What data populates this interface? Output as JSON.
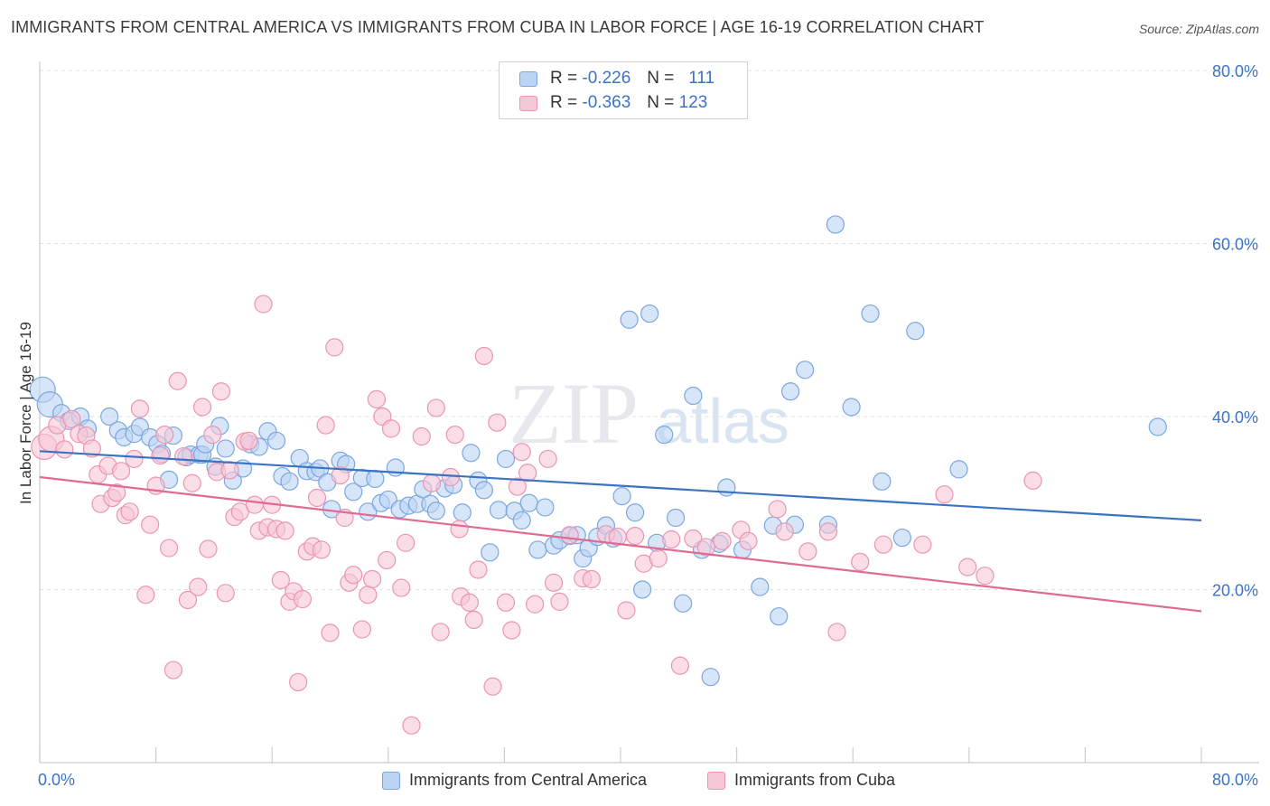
{
  "title": "IMMIGRANTS FROM CENTRAL AMERICA VS IMMIGRANTS FROM CUBA IN LABOR FORCE | AGE 16-19 CORRELATION CHART",
  "source": "Source: ZipAtlas.com",
  "watermark": {
    "zip": "ZIP",
    "atlas": "atlas"
  },
  "legend_top": {
    "rows": [
      {
        "r_label": "R =",
        "r_value": "-0.226",
        "n_label": "N =",
        "n_value": "111",
        "color": "#7aa7e0",
        "fill": "#bcd4f4"
      },
      {
        "r_label": "R =",
        "r_value": "-0.363",
        "n_label": "N =",
        "n_value": "123",
        "color": "#eb95b2",
        "fill": "#f7c6d7"
      }
    ]
  },
  "legend_bottom": {
    "items": [
      {
        "label": "Immigrants from Central America",
        "color": "#7aa7e0",
        "fill": "#bcd4f4"
      },
      {
        "label": "Immigrants from Cuba",
        "color": "#eb95b2",
        "fill": "#f7c6d7"
      }
    ]
  },
  "chart_data": {
    "type": "scatter",
    "title": "IMMIGRANTS FROM CENTRAL AMERICA VS IMMIGRANTS FROM CUBA IN LABOR FORCE | AGE 16-19 CORRELATION CHART",
    "xlabel": "",
    "ylabel": "In Labor Force | Age 16-19",
    "xlim": [
      0,
      80
    ],
    "ylim": [
      0,
      80
    ],
    "x_tick_labels": [
      "0.0%",
      "80.0%"
    ],
    "y_tick_labels": [
      "20.0%",
      "40.0%",
      "60.0%",
      "80.0%"
    ],
    "y_ticks": [
      20,
      40,
      60,
      80
    ],
    "grid": true,
    "legend_position": "top-center",
    "series": [
      {
        "name": "Immigrants from Central America",
        "color": "#3b73c4",
        "fill": "#bcd4f4",
        "stroke": "#7aa7e0",
        "trend": {
          "x": [
            0,
            80
          ],
          "y": [
            36.0,
            28.0
          ]
        },
        "points": [
          [
            0.2,
            43.1
          ],
          [
            0.7,
            41.4
          ],
          [
            1.5,
            40.4
          ],
          [
            2.0,
            39.5
          ],
          [
            2.8,
            40.0
          ],
          [
            3.3,
            38.6
          ],
          [
            4.8,
            40.0
          ],
          [
            5.4,
            38.4
          ],
          [
            5.8,
            37.6
          ],
          [
            6.5,
            38.0
          ],
          [
            6.9,
            38.8
          ],
          [
            7.6,
            37.6
          ],
          [
            8.1,
            36.8
          ],
          [
            8.4,
            35.7
          ],
          [
            8.9,
            32.7
          ],
          [
            9.2,
            37.8
          ],
          [
            10.1,
            35.3
          ],
          [
            10.4,
            35.6
          ],
          [
            11.0,
            35.6
          ],
          [
            11.2,
            35.6
          ],
          [
            11.4,
            36.8
          ],
          [
            12.1,
            34.2
          ],
          [
            12.4,
            38.9
          ],
          [
            12.8,
            36.3
          ],
          [
            13.3,
            32.6
          ],
          [
            14.0,
            34.0
          ],
          [
            14.5,
            36.8
          ],
          [
            15.1,
            36.5
          ],
          [
            15.7,
            38.3
          ],
          [
            16.3,
            37.2
          ],
          [
            16.7,
            33.1
          ],
          [
            17.2,
            32.5
          ],
          [
            17.9,
            35.2
          ],
          [
            18.4,
            33.7
          ],
          [
            19.0,
            33.6
          ],
          [
            19.3,
            34.0
          ],
          [
            19.8,
            32.4
          ],
          [
            20.1,
            29.3
          ],
          [
            20.7,
            34.9
          ],
          [
            21.1,
            34.5
          ],
          [
            21.6,
            31.3
          ],
          [
            22.2,
            32.9
          ],
          [
            22.6,
            29.0
          ],
          [
            23.1,
            32.8
          ],
          [
            23.5,
            30.0
          ],
          [
            24.0,
            30.4
          ],
          [
            24.5,
            34.1
          ],
          [
            24.8,
            29.3
          ],
          [
            25.4,
            29.7
          ],
          [
            26.0,
            29.9
          ],
          [
            26.4,
            31.6
          ],
          [
            26.9,
            29.9
          ],
          [
            27.3,
            29.1
          ],
          [
            27.9,
            31.7
          ],
          [
            28.5,
            32.1
          ],
          [
            29.1,
            28.9
          ],
          [
            29.7,
            35.8
          ],
          [
            30.2,
            32.6
          ],
          [
            30.6,
            31.5
          ],
          [
            31.0,
            24.3
          ],
          [
            31.6,
            29.2
          ],
          [
            32.1,
            35.1
          ],
          [
            32.7,
            29.1
          ],
          [
            33.2,
            28.0
          ],
          [
            33.7,
            30.0
          ],
          [
            34.3,
            24.6
          ],
          [
            34.8,
            29.5
          ],
          [
            35.4,
            25.1
          ],
          [
            35.8,
            25.7
          ],
          [
            36.5,
            26.2
          ],
          [
            37.0,
            26.3
          ],
          [
            37.4,
            23.6
          ],
          [
            37.8,
            24.8
          ],
          [
            38.4,
            26.1
          ],
          [
            39.0,
            27.4
          ],
          [
            39.5,
            25.9
          ],
          [
            40.1,
            30.8
          ],
          [
            40.6,
            51.2
          ],
          [
            41.0,
            28.9
          ],
          [
            41.5,
            20.0
          ],
          [
            42.0,
            51.9
          ],
          [
            42.5,
            25.4
          ],
          [
            43.0,
            37.9
          ],
          [
            43.8,
            28.3
          ],
          [
            44.3,
            18.4
          ],
          [
            45.0,
            42.4
          ],
          [
            45.6,
            24.6
          ],
          [
            46.2,
            9.9
          ],
          [
            46.8,
            25.3
          ],
          [
            47.3,
            31.8
          ],
          [
            48.4,
            24.6
          ],
          [
            49.6,
            20.3
          ],
          [
            50.5,
            27.4
          ],
          [
            50.9,
            16.9
          ],
          [
            51.7,
            42.9
          ],
          [
            52.0,
            27.5
          ],
          [
            52.7,
            45.4
          ],
          [
            54.3,
            27.5
          ],
          [
            54.8,
            62.2
          ],
          [
            55.9,
            41.1
          ],
          [
            57.2,
            51.9
          ],
          [
            58.0,
            32.5
          ],
          [
            59.4,
            26.0
          ],
          [
            60.3,
            49.9
          ],
          [
            63.3,
            33.9
          ],
          [
            77.0,
            38.8
          ]
        ]
      },
      {
        "name": "Immigrants from Cuba",
        "color": "#e06a94",
        "fill": "#f7c6d7",
        "stroke": "#eb95b2",
        "trend": {
          "x": [
            0,
            80
          ],
          "y": [
            33.0,
            17.5
          ]
        },
        "points": [
          [
            0.3,
            36.5
          ],
          [
            0.8,
            37.4
          ],
          [
            1.2,
            39.0
          ],
          [
            1.7,
            36.2
          ],
          [
            2.2,
            39.7
          ],
          [
            2.7,
            38.0
          ],
          [
            3.2,
            37.8
          ],
          [
            3.6,
            36.3
          ],
          [
            4.0,
            33.3
          ],
          [
            4.2,
            29.9
          ],
          [
            4.7,
            34.3
          ],
          [
            5.0,
            30.6
          ],
          [
            5.3,
            31.2
          ],
          [
            5.6,
            33.7
          ],
          [
            5.9,
            28.6
          ],
          [
            6.2,
            29.0
          ],
          [
            6.5,
            35.1
          ],
          [
            6.9,
            40.9
          ],
          [
            7.3,
            19.4
          ],
          [
            7.6,
            27.5
          ],
          [
            8.0,
            32.0
          ],
          [
            8.3,
            35.5
          ],
          [
            8.6,
            37.9
          ],
          [
            8.9,
            24.8
          ],
          [
            9.2,
            10.7
          ],
          [
            9.5,
            44.1
          ],
          [
            9.9,
            35.4
          ],
          [
            10.2,
            18.8
          ],
          [
            10.5,
            32.3
          ],
          [
            10.9,
            20.3
          ],
          [
            11.2,
            41.1
          ],
          [
            11.6,
            24.7
          ],
          [
            11.9,
            37.9
          ],
          [
            12.2,
            33.6
          ],
          [
            12.5,
            42.9
          ],
          [
            12.8,
            19.6
          ],
          [
            13.1,
            33.8
          ],
          [
            13.4,
            28.4
          ],
          [
            13.8,
            29.0
          ],
          [
            14.1,
            37.1
          ],
          [
            14.4,
            37.2
          ],
          [
            14.8,
            29.8
          ],
          [
            15.1,
            26.8
          ],
          [
            15.4,
            53.0
          ],
          [
            15.7,
            27.2
          ],
          [
            16.0,
            29.8
          ],
          [
            16.3,
            27.0
          ],
          [
            16.6,
            21.1
          ],
          [
            16.9,
            26.8
          ],
          [
            17.2,
            18.6
          ],
          [
            17.5,
            19.8
          ],
          [
            17.8,
            9.3
          ],
          [
            18.1,
            18.9
          ],
          [
            18.4,
            24.4
          ],
          [
            18.8,
            25.0
          ],
          [
            19.1,
            30.6
          ],
          [
            19.4,
            24.6
          ],
          [
            19.7,
            39.0
          ],
          [
            20.0,
            15.0
          ],
          [
            20.3,
            48.0
          ],
          [
            20.7,
            33.2
          ],
          [
            21.0,
            28.3
          ],
          [
            21.3,
            20.8
          ],
          [
            21.6,
            21.7
          ],
          [
            22.2,
            15.4
          ],
          [
            22.6,
            19.4
          ],
          [
            22.9,
            21.2
          ],
          [
            23.2,
            42.0
          ],
          [
            23.6,
            40.0
          ],
          [
            23.9,
            23.4
          ],
          [
            24.2,
            38.6
          ],
          [
            24.9,
            20.2
          ],
          [
            25.2,
            25.4
          ],
          [
            25.6,
            4.3
          ],
          [
            26.3,
            37.7
          ],
          [
            27.0,
            32.3
          ],
          [
            27.3,
            41.0
          ],
          [
            27.6,
            15.1
          ],
          [
            28.3,
            33.0
          ],
          [
            28.6,
            37.9
          ],
          [
            29.0,
            19.2
          ],
          [
            29.6,
            18.5
          ],
          [
            29.9,
            16.5
          ],
          [
            30.2,
            22.3
          ],
          [
            30.6,
            47.0
          ],
          [
            31.2,
            8.8
          ],
          [
            31.5,
            39.3
          ],
          [
            32.1,
            18.5
          ],
          [
            32.5,
            15.3
          ],
          [
            32.9,
            31.9
          ],
          [
            33.2,
            35.9
          ],
          [
            33.6,
            33.5
          ],
          [
            34.1,
            18.3
          ],
          [
            35.0,
            35.1
          ],
          [
            35.4,
            20.8
          ],
          [
            35.8,
            18.6
          ],
          [
            36.5,
            26.3
          ],
          [
            37.4,
            21.3
          ],
          [
            38.0,
            21.2
          ],
          [
            39.0,
            26.4
          ],
          [
            39.8,
            26.1
          ],
          [
            40.4,
            17.6
          ],
          [
            41.0,
            26.2
          ],
          [
            41.6,
            23.0
          ],
          [
            42.6,
            23.6
          ],
          [
            43.5,
            25.8
          ],
          [
            44.1,
            11.2
          ],
          [
            45.0,
            25.9
          ],
          [
            45.9,
            24.9
          ],
          [
            47.0,
            25.6
          ],
          [
            48.3,
            26.9
          ],
          [
            48.8,
            25.6
          ],
          [
            50.8,
            29.3
          ],
          [
            51.3,
            26.7
          ],
          [
            52.9,
            24.4
          ],
          [
            54.3,
            26.7
          ],
          [
            54.9,
            15.1
          ],
          [
            56.5,
            23.2
          ],
          [
            58.1,
            25.2
          ],
          [
            60.8,
            25.2
          ],
          [
            62.3,
            31.0
          ],
          [
            63.9,
            22.6
          ],
          [
            65.1,
            21.6
          ],
          [
            68.4,
            32.6
          ],
          [
            28.9,
            27.0
          ]
        ]
      }
    ]
  }
}
